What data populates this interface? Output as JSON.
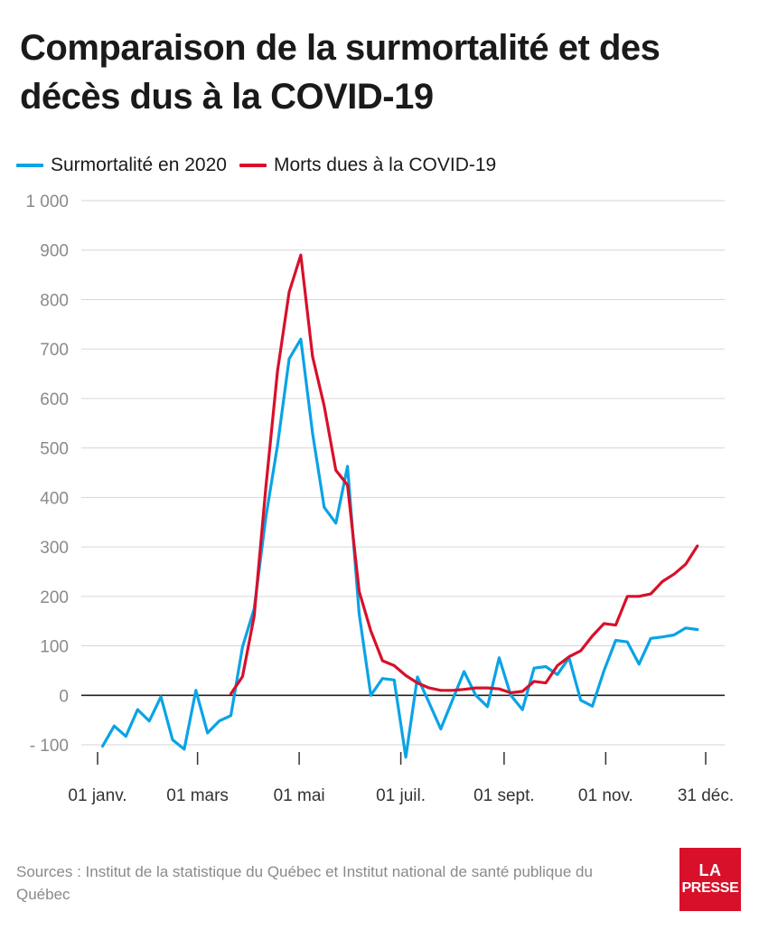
{
  "header": {
    "title": "Comparaison de la surmortalité et des décès dus à la COVID-19"
  },
  "footer": {
    "source": "Sources : Institut de la statistique du Québec et Institut national de santé publique du Québec"
  },
  "logo": {
    "line1": "LA",
    "line2": "PRESSE",
    "color": "#d8102a"
  },
  "chart_data": {
    "type": "line",
    "title": "Comparaison de la surmortalité et des décès dus à la COVID-19",
    "xlabel": "",
    "ylabel": "",
    "ylim": [
      -100,
      1000
    ],
    "yticks": [
      -100,
      0,
      100,
      200,
      300,
      400,
      500,
      600,
      700,
      800,
      900,
      1000
    ],
    "ytick_labels": [
      "- 100",
      "0",
      "100",
      "200",
      "300",
      "400",
      "500",
      "600",
      "700",
      "800",
      "900",
      "1 000"
    ],
    "xlim": [
      "2020-01-01",
      "2020-12-31"
    ],
    "xticks": [
      "2020-01-01",
      "2020-03-01",
      "2020-05-01",
      "2020-07-01",
      "2020-09-01",
      "2020-11-01",
      "2020-12-31"
    ],
    "xtick_labels": [
      "01 janv.",
      "01 mars",
      "01 mai",
      "01 juil.",
      "01 sept.",
      "01 nov.",
      "31 déc."
    ],
    "grid": true,
    "legend_position": "top-left",
    "series": [
      {
        "name": "Surmortalité en 2020",
        "color": "#0aa3e6",
        "points": [
          [
            "2020-01-04",
            -103
          ],
          [
            "2020-01-11",
            -62
          ],
          [
            "2020-01-18",
            -83
          ],
          [
            "2020-01-25",
            -29
          ],
          [
            "2020-02-01",
            -52
          ],
          [
            "2020-02-08",
            -3
          ],
          [
            "2020-02-15",
            -90
          ],
          [
            "2020-02-22",
            -109
          ],
          [
            "2020-02-29",
            10
          ],
          [
            "2020-03-07",
            -76
          ],
          [
            "2020-03-14",
            -52
          ],
          [
            "2020-03-21",
            -41
          ],
          [
            "2020-03-28",
            98
          ],
          [
            "2020-04-04",
            175
          ],
          [
            "2020-04-11",
            360
          ],
          [
            "2020-04-18",
            505
          ],
          [
            "2020-04-25",
            680
          ],
          [
            "2020-05-02",
            720
          ],
          [
            "2020-05-09",
            530
          ],
          [
            "2020-05-16",
            380
          ],
          [
            "2020-05-23",
            348
          ],
          [
            "2020-05-30",
            463
          ],
          [
            "2020-06-06",
            165
          ],
          [
            "2020-06-13",
            0
          ],
          [
            "2020-06-20",
            34
          ],
          [
            "2020-06-27",
            31
          ],
          [
            "2020-07-04",
            -125
          ],
          [
            "2020-07-11",
            37
          ],
          [
            "2020-07-18",
            -15
          ],
          [
            "2020-07-25",
            -68
          ],
          [
            "2020-08-01",
            -10
          ],
          [
            "2020-08-08",
            48
          ],
          [
            "2020-08-15",
            0
          ],
          [
            "2020-08-22",
            -23
          ],
          [
            "2020-08-29",
            76
          ],
          [
            "2020-09-05",
            0
          ],
          [
            "2020-09-12",
            -29
          ],
          [
            "2020-09-19",
            55
          ],
          [
            "2020-09-26",
            58
          ],
          [
            "2020-10-03",
            42
          ],
          [
            "2020-10-10",
            76
          ],
          [
            "2020-10-17",
            -10
          ],
          [
            "2020-10-24",
            -22
          ],
          [
            "2020-10-31",
            50
          ],
          [
            "2020-11-07",
            111
          ],
          [
            "2020-11-14",
            108
          ],
          [
            "2020-11-21",
            63
          ],
          [
            "2020-11-28",
            115
          ],
          [
            "2020-12-05",
            118
          ],
          [
            "2020-12-12",
            122
          ],
          [
            "2020-12-19",
            136
          ],
          [
            "2020-12-26",
            133
          ]
        ]
      },
      {
        "name": "Morts dues à la COVID-19",
        "color": "#d8102a",
        "points": [
          [
            "2020-03-21",
            3
          ],
          [
            "2020-03-28",
            38
          ],
          [
            "2020-04-04",
            160
          ],
          [
            "2020-04-11",
            420
          ],
          [
            "2020-04-18",
            655
          ],
          [
            "2020-04-25",
            815
          ],
          [
            "2020-05-02",
            890
          ],
          [
            "2020-05-09",
            685
          ],
          [
            "2020-05-16",
            585
          ],
          [
            "2020-05-23",
            455
          ],
          [
            "2020-05-30",
            425
          ],
          [
            "2020-06-06",
            210
          ],
          [
            "2020-06-13",
            130
          ],
          [
            "2020-06-20",
            70
          ],
          [
            "2020-06-27",
            60
          ],
          [
            "2020-07-04",
            40
          ],
          [
            "2020-07-11",
            25
          ],
          [
            "2020-07-18",
            15
          ],
          [
            "2020-07-25",
            10
          ],
          [
            "2020-08-01",
            10
          ],
          [
            "2020-08-08",
            12
          ],
          [
            "2020-08-15",
            15
          ],
          [
            "2020-08-22",
            15
          ],
          [
            "2020-08-29",
            13
          ],
          [
            "2020-09-05",
            5
          ],
          [
            "2020-09-12",
            8
          ],
          [
            "2020-09-19",
            28
          ],
          [
            "2020-09-26",
            25
          ],
          [
            "2020-10-03",
            60
          ],
          [
            "2020-10-10",
            78
          ],
          [
            "2020-10-17",
            90
          ],
          [
            "2020-10-24",
            120
          ],
          [
            "2020-10-31",
            145
          ],
          [
            "2020-11-07",
            142
          ],
          [
            "2020-11-14",
            200
          ],
          [
            "2020-11-21",
            200
          ],
          [
            "2020-11-28",
            205
          ],
          [
            "2020-12-05",
            230
          ],
          [
            "2020-12-12",
            245
          ],
          [
            "2020-12-19",
            265
          ],
          [
            "2020-12-26",
            302
          ]
        ]
      }
    ]
  }
}
